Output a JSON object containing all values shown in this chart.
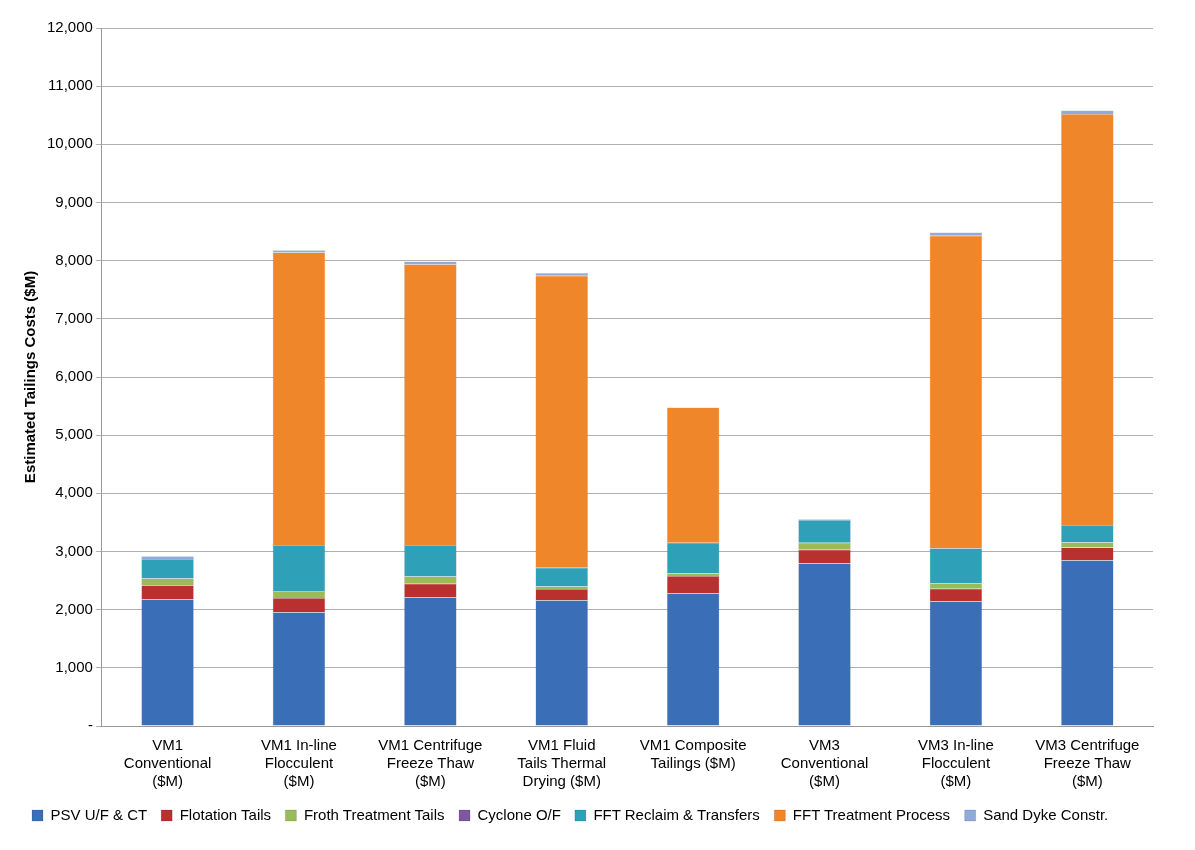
{
  "chart_data": {
    "type": "bar",
    "stacked": true,
    "ylabel": "Estimated Tailings Costs ($M)",
    "categories": [
      "VM1 Conventional ($M)",
      "VM1 In-line Flocculent ($M)",
      "VM1 Centrifuge Freeze Thaw ($M)",
      "VM1 Fluid Tails Thermal Drying ($M)",
      "VM1 Composite Tailings ($M)",
      "VM3 Conventional ($M)",
      "VM3 In-line Flocculent ($M)",
      "VM3 Centrifuge Freeze Thaw ($M)"
    ],
    "series": [
      {
        "name": "PSV U/F & CT",
        "color": "#3a6fb8",
        "values": [
          2180,
          1955,
          2215,
          2160,
          2280,
          2795,
          2145,
          2850
        ]
      },
      {
        "name": "Flotation Tails",
        "color": "#b8312f",
        "values": [
          240,
          245,
          230,
          195,
          300,
          235,
          215,
          220
        ]
      },
      {
        "name": "Froth Treatment Tails",
        "color": "#9bbb59",
        "values": [
          115,
          120,
          125,
          45,
          45,
          120,
          90,
          90
        ]
      },
      {
        "name": "Cyclone O/F",
        "color": "#7e57a2",
        "values": [
          0,
          0,
          0,
          0,
          0,
          0,
          0,
          0
        ]
      },
      {
        "name": "FFT Reclaim & Transfers",
        "color": "#2ea0b8",
        "values": [
          335,
          790,
          540,
          320,
          525,
          390,
          605,
          295
        ]
      },
      {
        "name": "FFT Treatment Process",
        "color": "#f0862a",
        "values": [
          0,
          5030,
          4830,
          5020,
          2325,
          0,
          5375,
          7065
        ]
      },
      {
        "name": "Sand Dyke Constr.",
        "color": "#8faadc",
        "values": [
          50,
          40,
          45,
          50,
          null,
          15,
          55,
          60
        ]
      }
    ],
    "ylim": [
      0,
      12000
    ],
    "yticks": [
      {
        "value": 0,
        "label": "-"
      },
      {
        "value": 1000,
        "label": "1,000"
      },
      {
        "value": 2000,
        "label": "2,000"
      },
      {
        "value": 3000,
        "label": "3,000"
      },
      {
        "value": 4000,
        "label": "4,000"
      },
      {
        "value": 5000,
        "label": "5,000"
      },
      {
        "value": 6000,
        "label": "6,000"
      },
      {
        "value": 7000,
        "label": "7,000"
      },
      {
        "value": 8000,
        "label": "8,000"
      },
      {
        "value": 9000,
        "label": "9,000"
      },
      {
        "value": 10000,
        "label": "10,000"
      },
      {
        "value": 11000,
        "label": "11,000"
      },
      {
        "value": 12000,
        "label": "12,000"
      }
    ],
    "grid": "y",
    "legend": "bottom"
  }
}
